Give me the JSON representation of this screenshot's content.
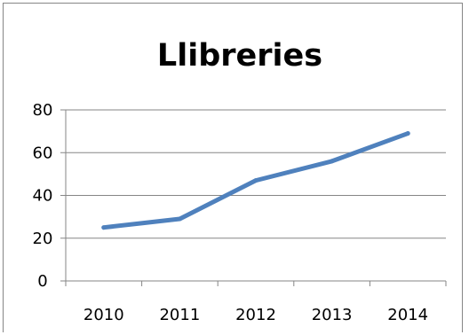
{
  "chart_data": {
    "type": "line",
    "title": "Llibreries",
    "xlabel": "",
    "ylabel": "",
    "categories": [
      "2010",
      "2011",
      "2012",
      "2013",
      "2014"
    ],
    "series": [
      {
        "values": [
          25,
          29,
          47,
          56,
          69
        ],
        "color": "#4F81BD"
      }
    ],
    "ylim": [
      0,
      80
    ],
    "yticks": [
      0,
      20,
      40,
      60,
      80
    ],
    "grid": true,
    "legend": "none",
    "colors": {
      "line": "#4F81BD",
      "grid": "#868686",
      "axis": "#868686",
      "frame": "#868686"
    }
  }
}
